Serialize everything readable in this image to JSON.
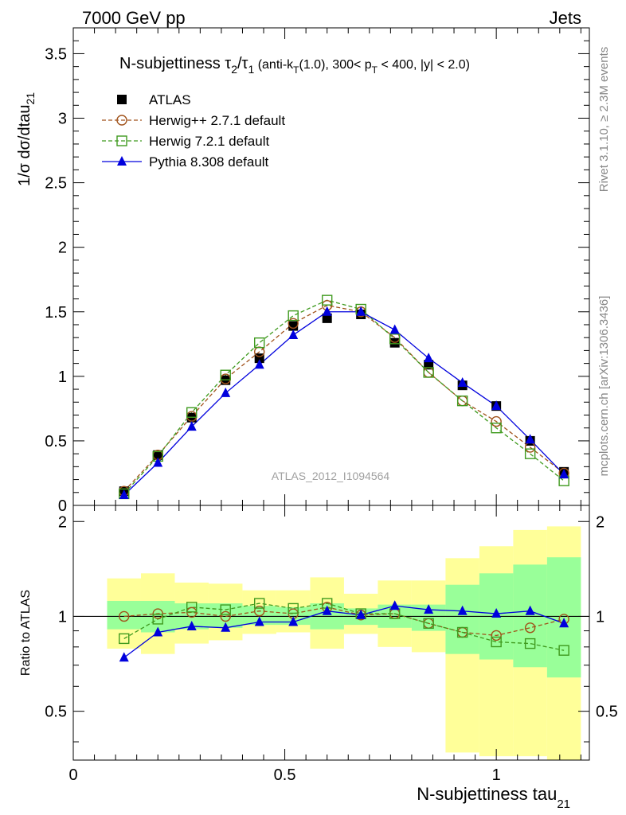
{
  "header": {
    "energy_label": "7000 GeV pp",
    "category_label": "Jets"
  },
  "side_labels": {
    "rivet": "Rivet 3.1.10, ≥ 2.3M events",
    "mcplots": "mcplots.cern.ch [arXiv:1306.3436]"
  },
  "watermark": "ATLAS_2012_I1094564",
  "colors": {
    "atlas": "#000000",
    "herwigpp": "#a0521a",
    "herwig7": "#3f9a1e",
    "pythia": "#0000dd",
    "band_inner": "#99ff99",
    "band_outer": "#ffff99"
  },
  "chart_data": [
    {
      "type": "scatter",
      "panel": "main",
      "title": {
        "main": "N-subjettiness τ",
        "sub_num": "2",
        "slash": "/τ",
        "sub_den": "1",
        "detail_a": " (anti-k",
        "detail_sub_t": "T",
        "detail_b": "(1.0), 300< p",
        "detail_sub_t2": "T",
        "detail_c": " < 400, |y| < 2.0)"
      },
      "ylabel_main": "1/σ dσ/dtau",
      "ylabel_sub": "21",
      "xlim": [
        0,
        1.22
      ],
      "ylim": [
        0,
        3.7
      ],
      "yticks": [
        "0",
        "0.5",
        "1",
        "1.5",
        "2",
        "2.5",
        "3",
        "3.5"
      ],
      "ytick_values": [
        0,
        0.5,
        1,
        1.5,
        2,
        2.5,
        3,
        3.5
      ],
      "legend_position": "top-left",
      "x": [
        0.12,
        0.2,
        0.28,
        0.36,
        0.44,
        0.52,
        0.6,
        0.68,
        0.76,
        0.84,
        0.92,
        1.0,
        1.08,
        1.16
      ],
      "series": [
        {
          "name": "ATLAS",
          "key": "atlas",
          "marker": "filled-square",
          "line": "none",
          "values": [
            0.11,
            0.39,
            0.68,
            0.97,
            1.14,
            1.39,
            1.45,
            1.48,
            1.26,
            1.09,
            0.93,
            0.77,
            0.5,
            0.26
          ]
        },
        {
          "name": "Herwig++ 2.7.1 default",
          "key": "herwigpp",
          "marker": "open-circle",
          "line": "dashed",
          "values": [
            0.11,
            0.39,
            0.69,
            0.98,
            1.19,
            1.41,
            1.55,
            1.5,
            1.3,
            1.03,
            0.81,
            0.65,
            0.45,
            0.25
          ]
        },
        {
          "name": "Herwig 7.2.1 default",
          "key": "herwig7",
          "marker": "open-square",
          "line": "dashed",
          "values": [
            0.09,
            0.38,
            0.72,
            1.01,
            1.26,
            1.47,
            1.59,
            1.52,
            1.29,
            1.03,
            0.81,
            0.6,
            0.4,
            0.19
          ]
        },
        {
          "name": "Pythia 8.308 default",
          "key": "pythia",
          "marker": "filled-triangle",
          "line": "solid",
          "values": [
            0.08,
            0.33,
            0.61,
            0.87,
            1.09,
            1.32,
            1.5,
            1.5,
            1.36,
            1.14,
            0.95,
            0.77,
            0.51,
            0.24
          ]
        }
      ]
    },
    {
      "type": "line",
      "panel": "ratio",
      "ylabel": "Ratio to ATLAS",
      "xlabel_main": "N-subjettiness tau",
      "xlabel_sub": "21",
      "xlim": [
        0,
        1.22
      ],
      "ylim": [
        0.35,
        2.25
      ],
      "yscale": "log",
      "yticks": [
        "0.5",
        "1",
        "2"
      ],
      "ytick_values": [
        0.5,
        1,
        2
      ],
      "xticks": [
        "0",
        "0.5",
        "1"
      ],
      "xtick_values": [
        0,
        0.5,
        1
      ],
      "bin_edges": [
        0.08,
        0.16,
        0.24,
        0.32,
        0.4,
        0.48,
        0.56,
        0.64,
        0.72,
        0.8,
        0.88,
        0.96,
        1.04,
        1.12,
        1.2
      ],
      "band_outer_low": [
        0.79,
        0.76,
        0.82,
        0.84,
        0.88,
        0.89,
        0.79,
        0.88,
        0.8,
        0.77,
        0.37,
        0.36,
        0.36,
        0.35
      ],
      "band_outer_high": [
        1.32,
        1.37,
        1.28,
        1.27,
        1.21,
        1.21,
        1.33,
        1.18,
        1.3,
        1.3,
        1.53,
        1.67,
        1.88,
        1.93
      ],
      "band_inner_low": [
        0.91,
        0.89,
        0.91,
        0.92,
        0.94,
        0.94,
        0.91,
        0.94,
        0.92,
        0.9,
        0.76,
        0.73,
        0.69,
        0.64
      ],
      "band_inner_high": [
        1.12,
        1.12,
        1.1,
        1.1,
        1.08,
        1.07,
        1.1,
        1.06,
        1.09,
        1.09,
        1.26,
        1.37,
        1.46,
        1.54
      ],
      "x": [
        0.12,
        0.2,
        0.28,
        0.36,
        0.44,
        0.52,
        0.6,
        0.68,
        0.76,
        0.84,
        0.92,
        1.0,
        1.08,
        1.16
      ],
      "series": [
        {
          "name": "Herwig++ 2.7.1 default",
          "key": "herwigpp",
          "marker": "open-circle",
          "line": "dashed",
          "values": [
            1.0,
            1.02,
            1.03,
            1.0,
            1.04,
            1.02,
            1.07,
            1.01,
            1.02,
            0.95,
            0.89,
            0.87,
            0.92,
            0.98
          ]
        },
        {
          "name": "Herwig 7.2.1 default",
          "key": "herwig7",
          "marker": "open-square",
          "line": "dashed",
          "values": [
            0.85,
            0.98,
            1.07,
            1.05,
            1.1,
            1.06,
            1.1,
            1.02,
            1.02,
            0.95,
            0.89,
            0.83,
            0.82,
            0.78
          ]
        },
        {
          "name": "Pythia 8.308 default",
          "key": "pythia",
          "marker": "filled-triangle",
          "line": "solid",
          "values": [
            0.74,
            0.89,
            0.93,
            0.92,
            0.96,
            0.96,
            1.04,
            1.01,
            1.08,
            1.05,
            1.04,
            1.02,
            1.04,
            0.95
          ]
        }
      ]
    }
  ]
}
